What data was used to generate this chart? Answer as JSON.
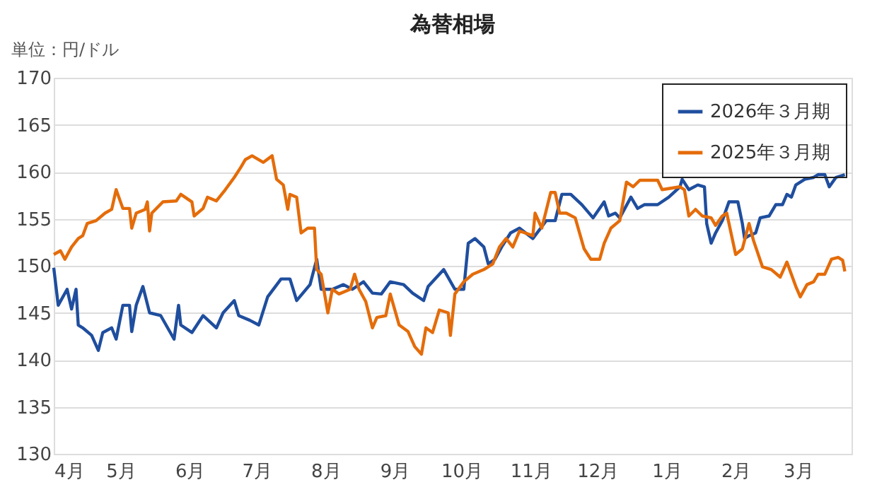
{
  "chart_data": {
    "type": "line",
    "title": "為替相場",
    "annotations": [
      "単位：円/ドル"
    ],
    "xlim": [
      "2025-04-01",
      "2026-03-25"
    ],
    "xticks": [
      {
        "value": "2025-04-01",
        "label": "4月"
      },
      {
        "value": "2025-05-01",
        "label": "5月"
      },
      {
        "value": "2025-06-01",
        "label": "6月"
      },
      {
        "value": "2025-07-01",
        "label": "7月"
      },
      {
        "value": "2025-08-01",
        "label": "8月"
      },
      {
        "value": "2025-09-01",
        "label": "9月"
      },
      {
        "value": "2025-10-01",
        "label": "10月"
      },
      {
        "value": "2025-11-01",
        "label": "11月"
      },
      {
        "value": "2025-12-01",
        "label": "12月"
      },
      {
        "value": "2026-01-01",
        "label": "1月"
      },
      {
        "value": "2026-02-01",
        "label": "2月"
      },
      {
        "value": "2026-03-01",
        "label": "3月"
      }
    ],
    "ylim": [
      130,
      170
    ],
    "yticks": [
      130,
      135,
      140,
      145,
      150,
      155,
      160,
      165,
      170
    ],
    "grid": "y",
    "legend": "top right",
    "marker": "none",
    "line_style": "solid",
    "series": [
      {
        "name": "2026年３月期",
        "color": "#1f4e9e",
        "x": [
          "2025-04-01",
          "2025-04-03",
          "2025-04-07",
          "2025-04-09",
          "2025-04-11",
          "2025-04-12",
          "2025-04-14",
          "2025-04-18",
          "2025-04-21",
          "2025-04-23",
          "2025-04-27",
          "2025-04-29",
          "2025-05-02",
          "2025-05-05",
          "2025-05-06",
          "2025-05-08",
          "2025-05-11",
          "2025-05-14",
          "2025-05-19",
          "2025-05-25",
          "2025-05-27",
          "2025-05-28",
          "2025-06-02",
          "2025-06-07",
          "2025-06-13",
          "2025-06-16",
          "2025-06-21",
          "2025-06-23",
          "2025-06-28",
          "2025-07-02",
          "2025-07-06",
          "2025-07-12",
          "2025-07-16",
          "2025-07-19",
          "2025-07-25",
          "2025-07-28",
          "2025-07-30",
          "2025-08-04",
          "2025-08-09",
          "2025-08-13",
          "2025-08-18",
          "2025-08-22",
          "2025-08-26",
          "2025-08-30",
          "2025-09-05",
          "2025-09-09",
          "2025-09-14",
          "2025-09-16",
          "2025-09-23",
          "2025-09-28",
          "2025-10-02",
          "2025-10-04",
          "2025-10-07",
          "2025-10-11",
          "2025-10-13",
          "2025-10-16",
          "2025-10-19",
          "2025-10-23",
          "2025-10-27",
          "2025-11-02",
          "2025-11-08",
          "2025-11-12",
          "2025-11-15",
          "2025-11-19",
          "2025-11-24",
          "2025-11-29",
          "2025-12-04",
          "2025-12-06",
          "2025-12-09",
          "2025-12-11",
          "2025-12-16",
          "2025-12-19",
          "2025-12-22",
          "2025-12-28",
          "2026-01-02",
          "2026-01-07",
          "2026-01-08",
          "2026-01-11",
          "2026-01-15",
          "2026-01-18",
          "2026-01-19",
          "2026-01-21",
          "2026-01-23",
          "2026-01-26",
          "2026-01-29",
          "2026-02-02",
          "2026-02-04",
          "2026-02-05",
          "2026-02-07",
          "2026-02-10",
          "2026-02-12",
          "2026-02-16",
          "2026-02-19",
          "2026-02-22",
          "2026-02-24",
          "2026-02-26",
          "2026-02-28",
          "2026-03-04",
          "2026-03-08",
          "2026-03-10",
          "2026-03-13",
          "2026-03-15",
          "2026-03-18",
          "2026-03-22"
        ],
        "values": [
          149.8,
          145.8,
          147.5,
          145.4,
          147.5,
          143.7,
          143.4,
          142.6,
          141,
          142.9,
          143.4,
          142.2,
          145.8,
          145.8,
          143,
          145.8,
          147.8,
          145,
          144.7,
          142.2,
          145.8,
          143.7,
          142.9,
          144.7,
          143.4,
          145,
          146.3,
          144.7,
          144.2,
          143.7,
          146.7,
          148.6,
          148.6,
          146.3,
          148,
          150.7,
          147.5,
          147.5,
          148,
          147.5,
          148.3,
          147.1,
          147,
          148.3,
          148,
          147.1,
          146.3,
          147.8,
          149.6,
          147.5,
          147.5,
          152.4,
          152.9,
          152,
          150.2,
          150.7,
          152,
          153.5,
          154,
          152.9,
          154.8,
          154.8,
          157.6,
          157.6,
          156.5,
          155.1,
          156.8,
          155.3,
          155.6,
          155.1,
          157.3,
          156.1,
          156.5,
          156.5,
          157.3,
          158.4,
          159.2,
          158.1,
          158.6,
          158.4,
          154.5,
          152.4,
          153.5,
          154.8,
          156.8,
          156.8,
          154.5,
          152.9,
          153.2,
          153.5,
          155.1,
          155.3,
          156.5,
          156.5,
          157.6,
          157.3,
          158.6,
          159.2,
          159.4,
          159.7,
          159.7,
          158.4,
          159.4,
          159.7
        ]
      },
      {
        "name": "2025年３月期",
        "color": "#e46c0a",
        "x": [
          "2025-04-01",
          "2025-04-04",
          "2025-04-06",
          "2025-04-09",
          "2025-04-12",
          "2025-04-14",
          "2025-04-16",
          "2025-04-20",
          "2025-04-24",
          "2025-04-27",
          "2025-04-29",
          "2025-05-02",
          "2025-05-05",
          "2025-05-06",
          "2025-05-08",
          "2025-05-12",
          "2025-05-13",
          "2025-05-14",
          "2025-05-15",
          "2025-05-20",
          "2025-05-26",
          "2025-05-28",
          "2025-06-02",
          "2025-06-03",
          "2025-06-07",
          "2025-06-09",
          "2025-06-13",
          "2025-06-17",
          "2025-06-21",
          "2025-06-24",
          "2025-06-26",
          "2025-06-29",
          "2025-07-04",
          "2025-07-08",
          "2025-07-10",
          "2025-07-13",
          "2025-07-15",
          "2025-07-16",
          "2025-07-19",
          "2025-07-21",
          "2025-07-24",
          "2025-07-27",
          "2025-07-28",
          "2025-07-30",
          "2025-08-02",
          "2025-08-04",
          "2025-08-07",
          "2025-08-12",
          "2025-08-14",
          "2025-08-16",
          "2025-08-19",
          "2025-08-22",
          "2025-08-24",
          "2025-08-28",
          "2025-08-30",
          "2025-09-03",
          "2025-09-07",
          "2025-09-10",
          "2025-09-13",
          "2025-09-15",
          "2025-09-18",
          "2025-09-21",
          "2025-09-25",
          "2025-09-26",
          "2025-09-28",
          "2025-10-02",
          "2025-10-06",
          "2025-10-11",
          "2025-10-15",
          "2025-10-18",
          "2025-10-21",
          "2025-10-24",
          "2025-10-27",
          "2025-11-02",
          "2025-11-03",
          "2025-11-06",
          "2025-11-10",
          "2025-11-12",
          "2025-11-14",
          "2025-11-17",
          "2025-11-21",
          "2025-11-25",
          "2025-11-28",
          "2025-12-02",
          "2025-12-04",
          "2025-12-07",
          "2025-12-11",
          "2025-12-14",
          "2025-12-17",
          "2025-12-20",
          "2025-12-28",
          "2025-12-30",
          "2026-01-07",
          "2026-01-09",
          "2026-01-11",
          "2026-01-14",
          "2026-01-17",
          "2026-01-21",
          "2026-01-23",
          "2026-01-26",
          "2026-01-28",
          "2026-02-01",
          "2026-02-04",
          "2026-02-07",
          "2026-02-09",
          "2026-02-13",
          "2026-02-17",
          "2026-02-21",
          "2026-02-24",
          "2026-02-26",
          "2026-02-28",
          "2026-03-02",
          "2026-03-05",
          "2026-03-08",
          "2026-03-10",
          "2026-03-13",
          "2026-03-16",
          "2026-03-19",
          "2026-03-21",
          "2026-03-22"
        ],
        "values": [
          151.2,
          151.6,
          150.7,
          152,
          152.9,
          153.2,
          154.5,
          154.8,
          155.6,
          156,
          158.1,
          156.1,
          156.1,
          154,
          155.6,
          156,
          156.8,
          153.7,
          155.6,
          156.8,
          156.9,
          157.6,
          156.8,
          155.3,
          156.1,
          157.3,
          156.9,
          158.1,
          159.4,
          160.5,
          161.3,
          161.7,
          161,
          161.7,
          159.2,
          158.6,
          156,
          157.6,
          157.3,
          153.5,
          154,
          154,
          149.6,
          149.1,
          145,
          147.5,
          147,
          147.5,
          149.1,
          147.5,
          146.2,
          143.4,
          144.5,
          144.7,
          147,
          143.7,
          143,
          141.4,
          140.6,
          143.4,
          142.9,
          145.3,
          145,
          142.6,
          147,
          148.3,
          149.1,
          149.6,
          150.2,
          152,
          152.9,
          152,
          153.7,
          153.2,
          155.6,
          154,
          157.8,
          157.8,
          155.6,
          155.6,
          155.1,
          151.8,
          150.7,
          150.7,
          152.4,
          154,
          154.8,
          158.9,
          158.4,
          159.1,
          159.1,
          158.1,
          158.4,
          158.1,
          155.3,
          156,
          155.3,
          155.1,
          154.3,
          155.3,
          155.6,
          151.2,
          151.8,
          154.5,
          152.7,
          149.9,
          149.6,
          148.8,
          150.4,
          149.1,
          147.8,
          146.7,
          148,
          148.3,
          149.1,
          149.1,
          150.7,
          150.9,
          150.6,
          149.4
        ]
      }
    ]
  }
}
